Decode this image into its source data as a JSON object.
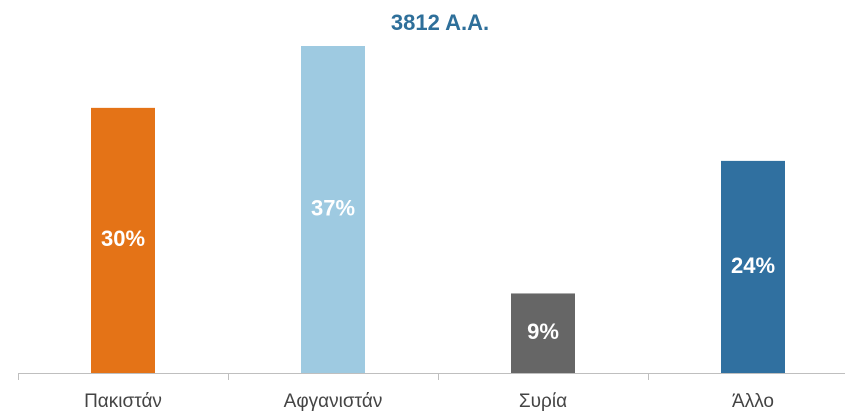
{
  "chart_data": {
    "type": "bar",
    "title": "3812 Α.Α.",
    "categories": [
      "Πακιστάν",
      "Αφγανιστάν",
      "Συρία",
      "Άλλο"
    ],
    "values": [
      30,
      37,
      9,
      24
    ],
    "value_labels": [
      "30%",
      "37%",
      "9%",
      "24%"
    ],
    "colors": [
      "#e47317",
      "#9ecae1",
      "#666666",
      "#3070a0"
    ],
    "title_color": "#2e6f9a"
  }
}
